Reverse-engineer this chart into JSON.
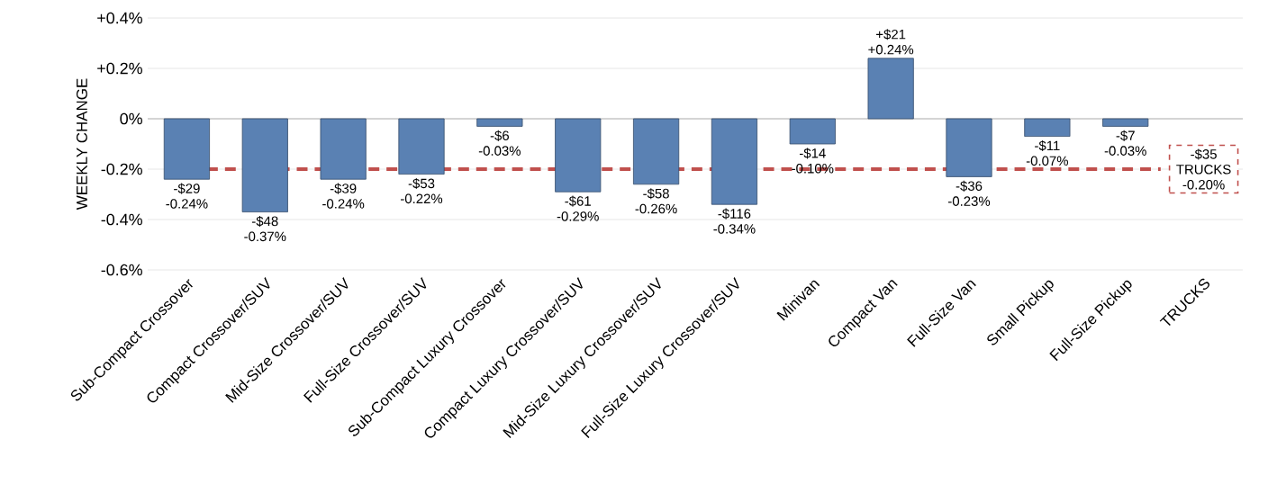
{
  "chart_data": {
    "type": "bar",
    "ylabel": "WEEKLY CHANGE",
    "categories": [
      "Sub-Compact Crossover",
      "Compact Crossover/SUV",
      "Mid-Size Crossover/SUV",
      "Full-Size Crossover/SUV",
      "Sub-Compact Luxury Crossover",
      "Compact Luxury Crossover/SUV",
      "Mid-Size Luxury Crossover/SUV",
      "Full-Size Luxury Crossover/SUV",
      "Minivan",
      "Compact Van",
      "Full-Size Van",
      "Small Pickup",
      "Full-Size Pickup",
      "TRUCKS"
    ],
    "values": [
      -0.24,
      -0.37,
      -0.24,
      -0.22,
      -0.03,
      -0.29,
      -0.26,
      -0.34,
      -0.1,
      0.24,
      -0.23,
      -0.07,
      -0.03,
      null
    ],
    "value_labels": [
      "-$29 -0.24%",
      "-$48 -0.37%",
      "-$39 -0.24%",
      "-$53 -0.22%",
      "-$6 -0.03%",
      "-$61 -0.29%",
      "-$58 -0.26%",
      "-$116 -0.34%",
      "-$14 -0.10%",
      "+$21 +0.24%",
      "-$36 -0.23%",
      "-$11 -0.07%",
      "-$7 -0.03%",
      null
    ],
    "color": "#5a81b3",
    "ylim": [
      -0.6,
      0.4
    ],
    "yticks": [
      {
        "value": -0.6,
        "label": "-0.6%"
      },
      {
        "value": -0.4,
        "label": "-0.4%"
      },
      {
        "value": -0.2,
        "label": "-0.2%"
      },
      {
        "value": 0,
        "label": "0%"
      },
      {
        "value": 0.2,
        "label": "+0.2%"
      },
      {
        "value": 0.4,
        "label": "+0.4%"
      }
    ],
    "grid": "y",
    "ref_lines": [
      {
        "axis": "y",
        "value": -0.2,
        "label": "-$35 TRUCKS -0.20%",
        "color": "#c0504d",
        "line_style": "dashed"
      }
    ]
  }
}
